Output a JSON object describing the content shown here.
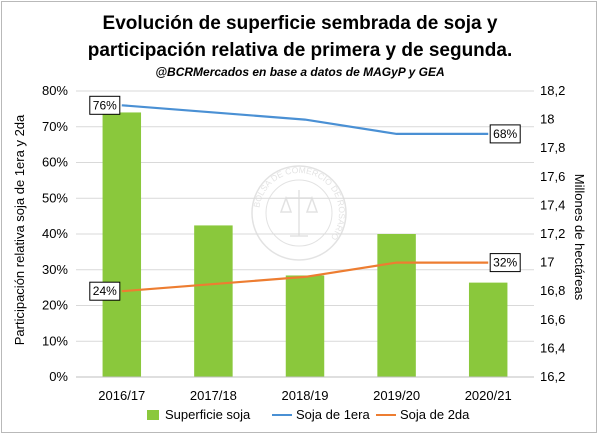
{
  "chart_data": {
    "type": "bar",
    "title_line1": "Evolución de superficie sembrada de soja y",
    "title_line2": "participación relativa de primera y de segunda.",
    "subtitle": "@BCRMercados  en base a datos de  MAGyP y GEA",
    "categories": [
      "2016/17",
      "2017/18",
      "2018/19",
      "2019/20",
      "2020/21"
    ],
    "series": [
      {
        "name": "Superficie soja",
        "type": "bar",
        "axis": "right",
        "color": "#8ac83c",
        "values": [
          18.05,
          17.26,
          16.91,
          17.2,
          16.86
        ]
      },
      {
        "name": "Soja de 1era",
        "type": "line",
        "axis": "left",
        "color": "#4a90d4",
        "values": [
          76,
          74,
          72,
          68,
          68
        ]
      },
      {
        "name": "Soja de 2da",
        "type": "line",
        "axis": "left",
        "color": "#ed7d31",
        "values": [
          24,
          26,
          28,
          32,
          32
        ]
      }
    ],
    "left_axis": {
      "label": "Participación relativa soja de 1era y 2da",
      "min": 0,
      "max": 80,
      "step": 10,
      "ticks": [
        "0%",
        "10%",
        "20%",
        "30%",
        "40%",
        "50%",
        "60%",
        "70%",
        "80%"
      ]
    },
    "right_axis": {
      "label": "Millones de hectáreas",
      "min": 16.2,
      "max": 18.2,
      "step": 0.2,
      "ticks": [
        "16,2",
        "16,4",
        "16,6",
        "16,8",
        "17",
        "17,2",
        "17,4",
        "17,6",
        "17,8",
        "18",
        "18,2"
      ]
    },
    "data_labels": [
      {
        "text": "76%",
        "series": 1,
        "index": 0,
        "side": "left"
      },
      {
        "text": "68%",
        "series": 1,
        "index": 4,
        "side": "right"
      },
      {
        "text": "24%",
        "series": 2,
        "index": 0,
        "side": "left"
      },
      {
        "text": "32%",
        "series": 2,
        "index": 4,
        "side": "right"
      }
    ],
    "watermark": "BOLSA DE COMERCIO DE ROSARIO",
    "grid": true,
    "legend_position": "bottom"
  }
}
